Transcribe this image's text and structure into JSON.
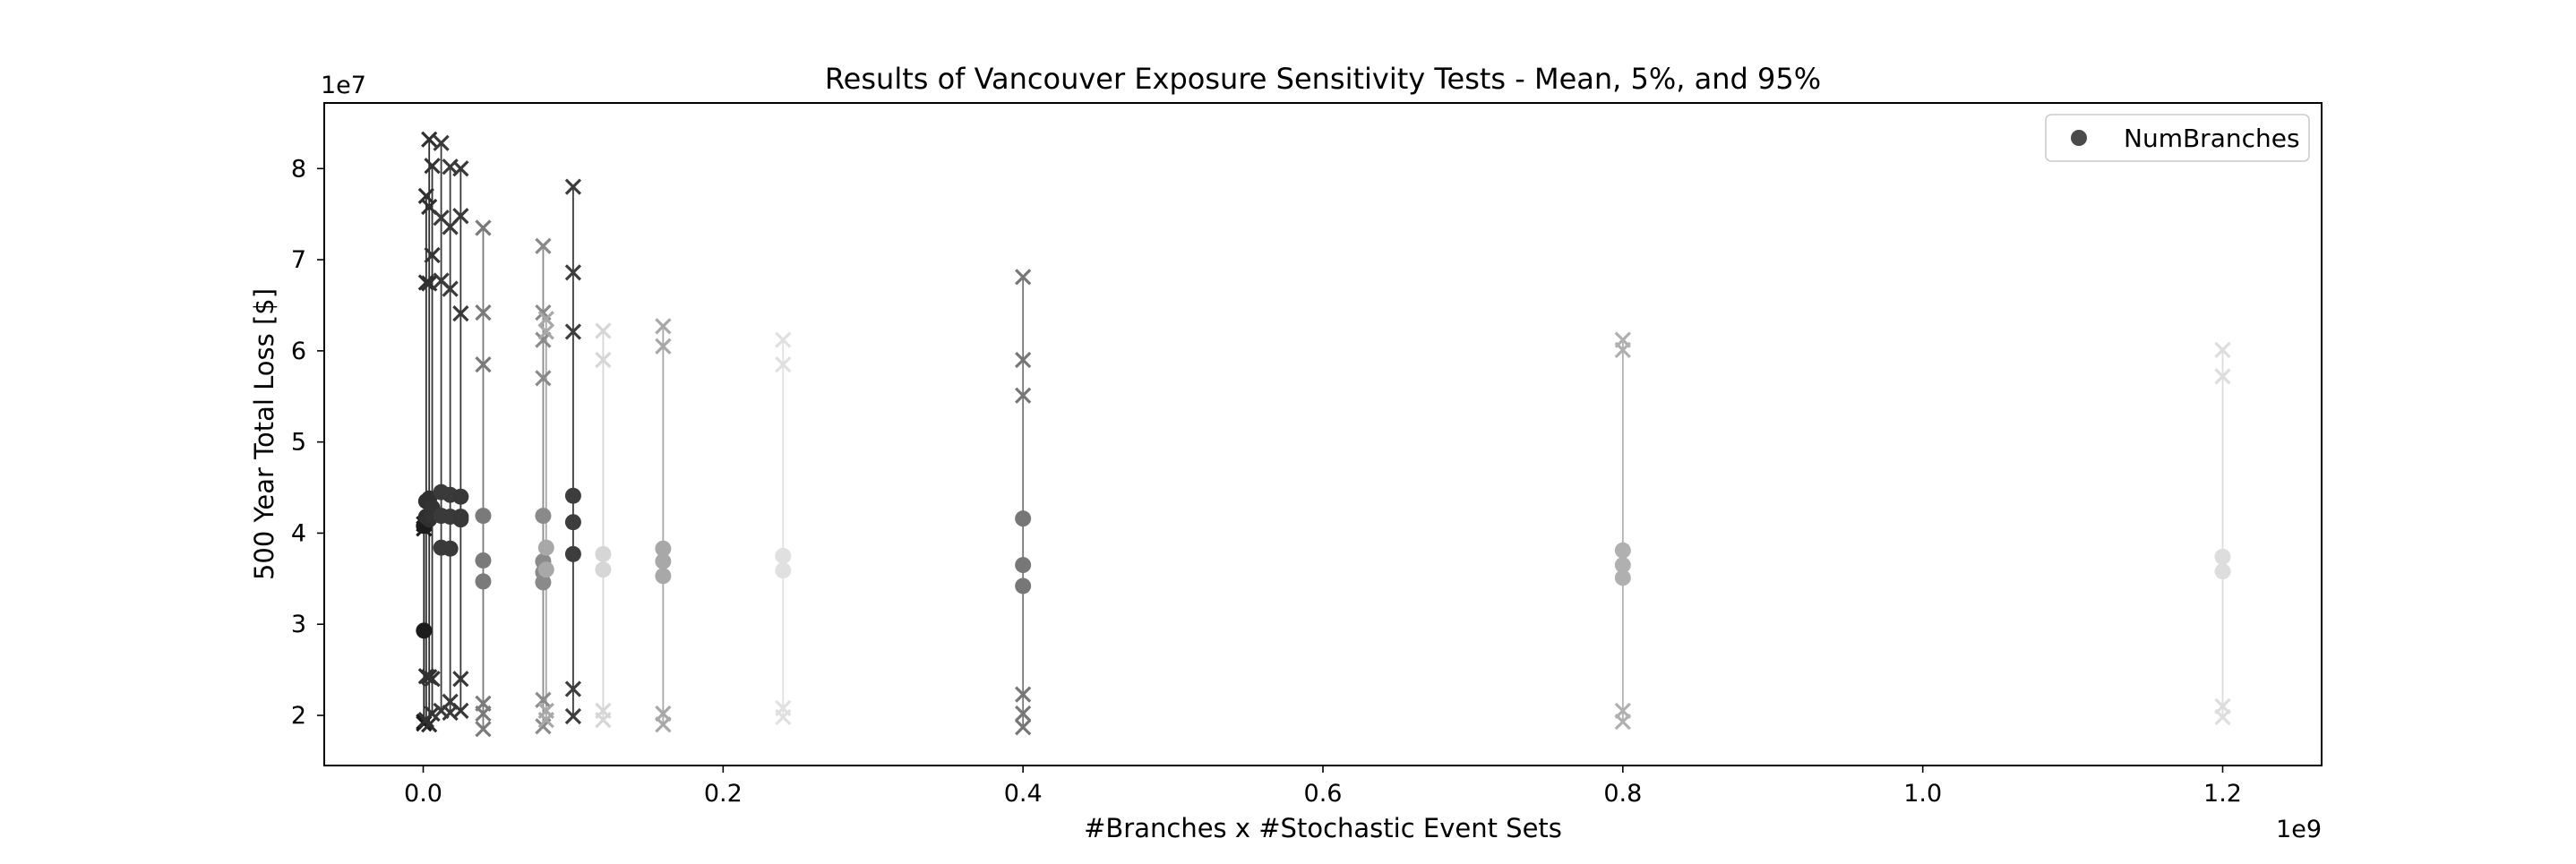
{
  "chart_data": {
    "type": "scatter",
    "title": "Results of Vancouver Exposure Sensitivity Tests - Mean, 5%, and 95%",
    "xlabel": "#Branches x #Stochastic Event Sets",
    "ylabel": "500 Year Total Loss [$]",
    "x_offset_text": "1e9",
    "y_offset_text": "1e7",
    "xlim": [
      -0.066,
      1.266
    ],
    "ylim": [
      1.45,
      8.72
    ],
    "x_ticks": [
      0.0,
      0.2,
      0.4,
      0.6,
      0.8,
      1.0,
      1.2
    ],
    "x_tick_labels": [
      "0.0",
      "0.2",
      "0.4",
      "0.6",
      "0.8",
      "1.0",
      "1.2"
    ],
    "y_ticks": [
      2,
      3,
      4,
      5,
      6,
      7,
      8
    ],
    "y_tick_labels": [
      "2",
      "3",
      "4",
      "5",
      "6",
      "7",
      "8"
    ],
    "legend": {
      "label": "NumBranches",
      "position": "upper right",
      "marker_color": "#4a4a4a"
    },
    "series": [
      {
        "x": 0.0005,
        "color": "#1c1c1c",
        "means": [
          2.93,
          4.08
        ],
        "markers_x": [
          1.91,
          1.93,
          4.05,
          4.1
        ]
      },
      {
        "x": 0.002,
        "color": "#303030",
        "means": [
          4.18,
          4.35
        ],
        "markers_x": [
          1.95,
          2.43,
          6.75,
          7.7
        ]
      },
      {
        "x": 0.004,
        "color": "#303030",
        "means": [
          4.15,
          4.38
        ],
        "markers_x": [
          2.42,
          1.9,
          6.74,
          7.58,
          8.32
        ]
      },
      {
        "x": 0.006,
        "color": "#333333",
        "means": [
          4.2,
          4.28
        ],
        "markers_x": [
          2.02,
          2.4,
          7.05,
          8.03
        ]
      },
      {
        "x": 0.012,
        "color": "#3a3a3a",
        "means": [
          3.84,
          4.19,
          4.45
        ],
        "markers_x": [
          2.05,
          6.77,
          7.46,
          8.28
        ]
      },
      {
        "x": 0.018,
        "color": "#3a3a3a",
        "means": [
          3.83,
          4.18,
          4.42
        ],
        "markers_x": [
          2.03,
          2.15,
          6.68,
          7.36,
          8.02
        ]
      },
      {
        "x": 0.025,
        "color": "#383838",
        "means": [
          4.15,
          4.18,
          4.4
        ],
        "markers_x": [
          2.05,
          2.4,
          6.41,
          7.48,
          8.0
        ]
      },
      {
        "x": 0.04,
        "color": "#7a7a7a",
        "means": [
          3.47,
          3.7,
          4.19
        ],
        "markers_x": [
          1.85,
          2.02,
          2.13,
          5.85,
          6.42,
          7.35
        ]
      },
      {
        "x": 0.08,
        "color": "#8a8a8a",
        "means": [
          3.46,
          3.57,
          3.69,
          4.19
        ],
        "markers_x": [
          1.88,
          2.17,
          5.7,
          6.12,
          6.42,
          7.15
        ]
      },
      {
        "x": 0.082,
        "color": "#a8a8a8",
        "means": [
          3.6,
          3.84
        ],
        "markers_x": [
          1.95,
          2.05,
          6.21,
          6.35
        ]
      },
      {
        "x": 0.1,
        "color": "#3d3d3d",
        "means": [
          3.77,
          4.12,
          4.41
        ],
        "markers_x": [
          1.99,
          2.29,
          6.21,
          6.86,
          7.8
        ]
      },
      {
        "x": 0.12,
        "color": "#d6d6d6",
        "means": [
          3.6,
          3.77
        ],
        "markers_x": [
          1.95,
          2.05,
          5.9,
          6.22
        ]
      },
      {
        "x": 0.16,
        "color": "#a8a8a8",
        "means": [
          3.53,
          3.69,
          3.83
        ],
        "markers_x": [
          1.9,
          2.02,
          6.05,
          6.27
        ]
      },
      {
        "x": 0.24,
        "color": "#e0e0e0",
        "means": [
          3.59,
          3.75
        ],
        "markers_x": [
          1.98,
          2.08,
          5.85,
          6.12
        ]
      },
      {
        "x": 0.4,
        "color": "#777777",
        "means": [
          3.42,
          3.65,
          4.16
        ],
        "markers_x": [
          1.87,
          2.02,
          2.23,
          5.51,
          5.9,
          6.81
        ]
      },
      {
        "x": 0.8,
        "color": "#b0b0b0",
        "means": [
          3.51,
          3.65,
          3.81
        ],
        "markers_x": [
          1.93,
          2.05,
          6.01,
          6.12
        ]
      },
      {
        "x": 1.2,
        "color": "#dddddd",
        "means": [
          3.58,
          3.74
        ],
        "markers_x": [
          1.98,
          2.1,
          5.72,
          6.01
        ]
      }
    ]
  }
}
